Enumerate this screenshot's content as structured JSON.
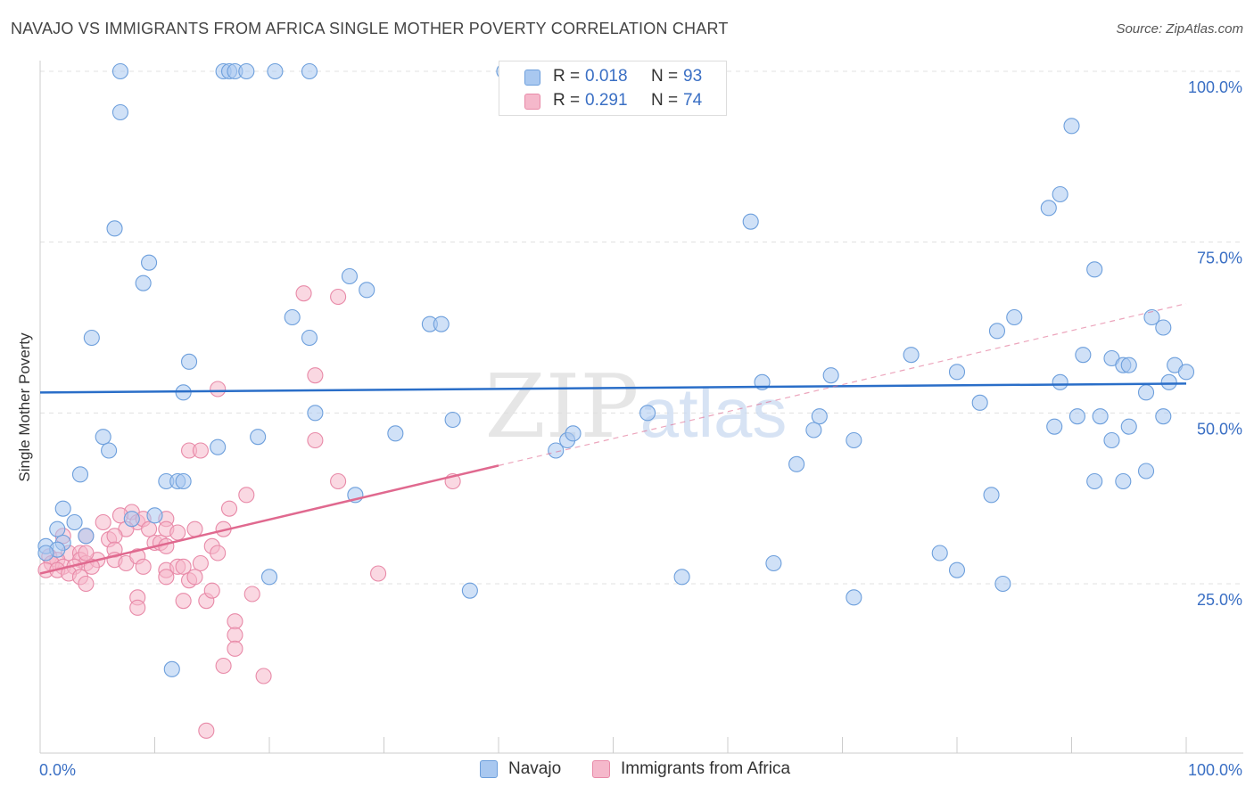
{
  "title": "NAVAJO VS IMMIGRANTS FROM AFRICA SINGLE MOTHER POVERTY CORRELATION CHART",
  "source": "Source: ZipAtlas.com",
  "watermark": {
    "zip": "ZIP",
    "atlas": "atlas"
  },
  "legend_top": {
    "rows": [
      {
        "r_label": "R =",
        "r_value": "0.018",
        "n_label": "N =",
        "n_value": "93"
      },
      {
        "r_label": "R =",
        "r_value": "0.291",
        "n_label": "N =",
        "n_value": "74"
      }
    ]
  },
  "legend_bottom": {
    "items": [
      {
        "label": "Navajo"
      },
      {
        "label": "Immigrants from Africa"
      }
    ]
  },
  "colors": {
    "navajo_fill": "#a9c8f0",
    "navajo_stroke": "#6d9fdc",
    "navajo_line": "#2a6ec8",
    "africa_fill": "#f5b8cb",
    "africa_stroke": "#e88aa8",
    "africa_line": "#e0698f",
    "axis_label": "#3a6fc4",
    "grid": "#e0e0e0"
  },
  "chart_data": {
    "type": "scatter",
    "title": "NAVAJO VS IMMIGRANTS FROM AFRICA SINGLE MOTHER POVERTY CORRELATION CHART",
    "xlabel": "",
    "ylabel": "Single Mother Poverty",
    "xlim": [
      0,
      100
    ],
    "ylim": [
      0,
      105
    ],
    "x_tick_labels": [
      {
        "value": 0,
        "label": "0.0%"
      },
      {
        "value": 100,
        "label": "100.0%"
      }
    ],
    "y_tick_labels": [
      {
        "value": 25,
        "label": "25.0%"
      },
      {
        "value": 50,
        "label": "50.0%"
      },
      {
        "value": 75,
        "label": "75.0%"
      },
      {
        "value": 100,
        "label": "100.0%"
      }
    ],
    "x_ticks": [
      0,
      10,
      20,
      30,
      40,
      50,
      60,
      70,
      80,
      90,
      100
    ],
    "series": [
      {
        "name": "Navajo",
        "R": 0.018,
        "N": 93,
        "trend": {
          "x": [
            0,
            100
          ],
          "y": [
            53.0,
            54.3
          ],
          "x_solid_end": 100
        },
        "points": [
          [
            7,
            100
          ],
          [
            16,
            100
          ],
          [
            16.5,
            100
          ],
          [
            17,
            100
          ],
          [
            18,
            100
          ],
          [
            20.5,
            100
          ],
          [
            23.5,
            100
          ],
          [
            40.5,
            100
          ],
          [
            7,
            94
          ],
          [
            90,
            92
          ],
          [
            6.5,
            77
          ],
          [
            88,
            80
          ],
          [
            89,
            82
          ],
          [
            62,
            78
          ],
          [
            9.5,
            72
          ],
          [
            9,
            69
          ],
          [
            92,
            71
          ],
          [
            27,
            70
          ],
          [
            28.5,
            68
          ],
          [
            22,
            64
          ],
          [
            34,
            63
          ],
          [
            35,
            63
          ],
          [
            23.5,
            61
          ],
          [
            4.5,
            61
          ],
          [
            85,
            64
          ],
          [
            83.5,
            62
          ],
          [
            97,
            64
          ],
          [
            98,
            62.5
          ],
          [
            76,
            58.5
          ],
          [
            91,
            58.5
          ],
          [
            93.5,
            58
          ],
          [
            94.5,
            57
          ],
          [
            95,
            57
          ],
          [
            13,
            57.5
          ],
          [
            99,
            57
          ],
          [
            100,
            56
          ],
          [
            69,
            55.5
          ],
          [
            63,
            54.5
          ],
          [
            80,
            56
          ],
          [
            89,
            54.5
          ],
          [
            98.5,
            54.5
          ],
          [
            12.5,
            53
          ],
          [
            96.5,
            53
          ],
          [
            82,
            51.5
          ],
          [
            24,
            50
          ],
          [
            36,
            49
          ],
          [
            53,
            50
          ],
          [
            68,
            49.5
          ],
          [
            90.5,
            49.5
          ],
          [
            92.5,
            49.5
          ],
          [
            98,
            49.5
          ],
          [
            88.5,
            48
          ],
          [
            95,
            48
          ],
          [
            31,
            47
          ],
          [
            67.5,
            47.5
          ],
          [
            15.5,
            45
          ],
          [
            19,
            46.5
          ],
          [
            5.5,
            46.5
          ],
          [
            46,
            46
          ],
          [
            71,
            46
          ],
          [
            46.5,
            47
          ],
          [
            6,
            44.5
          ],
          [
            45,
            44.5
          ],
          [
            93.5,
            46
          ],
          [
            66,
            42.5
          ],
          [
            3.5,
            41
          ],
          [
            11,
            40
          ],
          [
            12,
            40
          ],
          [
            12.5,
            40
          ],
          [
            92,
            40
          ],
          [
            94.5,
            40
          ],
          [
            96.5,
            41.5
          ],
          [
            27.5,
            38
          ],
          [
            83,
            38
          ],
          [
            2,
            36
          ],
          [
            10,
            35
          ],
          [
            3,
            34
          ],
          [
            8,
            34.5
          ],
          [
            1.5,
            33
          ],
          [
            4,
            32
          ],
          [
            2,
            31
          ],
          [
            0.5,
            30.5
          ],
          [
            1.5,
            30
          ],
          [
            0.5,
            29.5
          ],
          [
            78.5,
            29.5
          ],
          [
            80,
            27
          ],
          [
            64,
            28
          ],
          [
            20,
            26
          ],
          [
            56,
            26
          ],
          [
            37.5,
            24
          ],
          [
            71,
            23
          ],
          [
            84,
            25
          ],
          [
            11.5,
            12.5
          ]
        ]
      },
      {
        "name": "Immigrants from Africa",
        "R": 0.291,
        "N": 74,
        "trend": {
          "x": [
            0,
            100
          ],
          "y": [
            26.5,
            66.0
          ],
          "x_solid_end": 40
        },
        "points": [
          [
            23,
            67.5
          ],
          [
            26,
            67
          ],
          [
            24,
            55.5
          ],
          [
            15.5,
            53.5
          ],
          [
            24,
            46
          ],
          [
            13,
            44.5
          ],
          [
            14,
            44.5
          ],
          [
            26,
            40
          ],
          [
            36,
            40
          ],
          [
            18,
            38
          ],
          [
            16.5,
            36
          ],
          [
            8,
            35.5
          ],
          [
            7,
            35
          ],
          [
            11,
            34.5
          ],
          [
            8.5,
            34
          ],
          [
            9,
            34.5
          ],
          [
            5.5,
            34
          ],
          [
            7.5,
            33
          ],
          [
            9.5,
            33
          ],
          [
            11,
            33
          ],
          [
            12,
            32.5
          ],
          [
            13.5,
            33
          ],
          [
            16,
            33
          ],
          [
            2,
            32
          ],
          [
            4,
            32
          ],
          [
            6,
            31.5
          ],
          [
            6.5,
            32
          ],
          [
            10,
            31
          ],
          [
            10.5,
            31
          ],
          [
            11,
            30.5
          ],
          [
            15,
            30.5
          ],
          [
            15.5,
            29.5
          ],
          [
            6.5,
            30
          ],
          [
            2.5,
            29.5
          ],
          [
            3.5,
            29.5
          ],
          [
            0.8,
            29
          ],
          [
            1.5,
            28.5
          ],
          [
            3.5,
            28.5
          ],
          [
            4,
            28
          ],
          [
            5,
            28.5
          ],
          [
            6.5,
            28.5
          ],
          [
            7.5,
            28
          ],
          [
            8.5,
            29
          ],
          [
            1,
            28
          ],
          [
            2,
            27.5
          ],
          [
            3,
            27.5
          ],
          [
            4.5,
            27.5
          ],
          [
            9,
            27.5
          ],
          [
            11,
            27
          ],
          [
            12,
            27.5
          ],
          [
            12.5,
            27.5
          ],
          [
            14,
            28
          ],
          [
            0.5,
            27
          ],
          [
            1.5,
            27
          ],
          [
            2.5,
            26.5
          ],
          [
            11,
            26
          ],
          [
            13,
            25.5
          ],
          [
            13.5,
            26
          ],
          [
            3.5,
            26
          ],
          [
            4,
            25
          ],
          [
            29.5,
            26.5
          ],
          [
            8.5,
            23
          ],
          [
            12.5,
            22.5
          ],
          [
            14.5,
            22.5
          ],
          [
            15,
            24
          ],
          [
            18.5,
            23.5
          ],
          [
            8.5,
            21.5
          ],
          [
            17,
            19.5
          ],
          [
            17,
            17.5
          ],
          [
            17,
            15.5
          ],
          [
            16,
            13
          ],
          [
            19.5,
            11.5
          ],
          [
            14.5,
            3.5
          ],
          [
            4,
            29.5
          ]
        ]
      }
    ]
  }
}
